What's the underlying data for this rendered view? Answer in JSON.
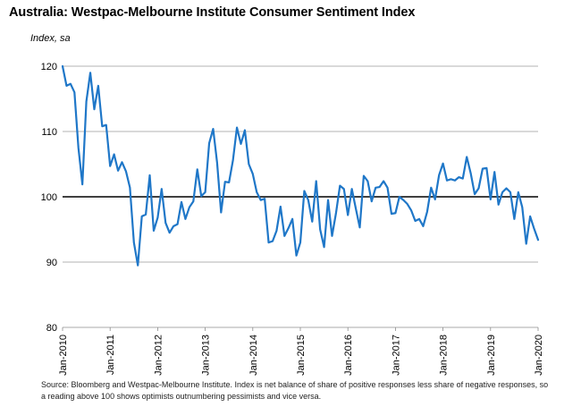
{
  "chart_data": {
    "type": "line",
    "title": "Australia: Westpac-Melbourne Institute Consumer Sentiment Index",
    "ylabel": "Index, sa",
    "xlabel": "",
    "ylim": [
      80,
      120
    ],
    "yticks": [
      80,
      90,
      100,
      110,
      120
    ],
    "xlim": [
      2010.0,
      2020.0
    ],
    "xticks": [
      {
        "label": "Jan-2010",
        "x": 2010
      },
      {
        "label": "Jan-2011",
        "x": 2011
      },
      {
        "label": "Jan-2012",
        "x": 2012
      },
      {
        "label": "Jan-2013",
        "x": 2013
      },
      {
        "label": "Jan-2014",
        "x": 2014
      },
      {
        "label": "Jan-2015",
        "x": 2015
      },
      {
        "label": "Jan-2016",
        "x": 2016
      },
      {
        "label": "Jan-2017",
        "x": 2017
      },
      {
        "label": "Jan-2018",
        "x": 2018
      },
      {
        "label": "Jan-2019",
        "x": 2019
      },
      {
        "label": "Jan-2020",
        "x": 2020
      }
    ],
    "reference_line": 100,
    "grid": true,
    "series": [
      {
        "name": "Consumer Sentiment Index",
        "color": "#1F77C8",
        "start": "2010-01",
        "values": [
          120.5,
          117.0,
          117.3,
          116.0,
          107.5,
          101.9,
          114.6,
          119.0,
          113.4,
          117.0,
          110.8,
          111.0,
          104.7,
          106.5,
          104.0,
          105.3,
          103.9,
          101.4,
          93.0,
          89.5,
          97.0,
          97.3,
          103.3,
          94.8,
          96.8,
          101.2,
          96.0,
          94.5,
          95.5,
          95.8,
          99.2,
          96.6,
          98.4,
          99.3,
          104.2,
          100.1,
          100.7,
          108.2,
          110.4,
          105.2,
          97.6,
          102.3,
          102.2,
          105.6,
          110.6,
          108.1,
          110.2,
          105.0,
          103.5,
          100.7,
          99.5,
          99.7,
          93.0,
          93.2,
          94.8,
          98.5,
          94.0,
          95.2,
          96.6,
          91.0,
          93.0,
          100.9,
          99.5,
          96.2,
          102.4,
          95.0,
          92.3,
          99.5,
          94.0,
          97.5,
          101.7,
          101.2,
          97.2,
          101.2,
          98.2,
          95.3,
          103.2,
          102.4,
          99.3,
          101.4,
          101.5,
          102.4,
          101.4,
          97.4,
          97.5,
          100.0,
          99.5,
          98.9,
          97.9,
          96.3,
          96.6,
          95.5,
          97.7,
          101.4,
          99.6,
          103.3,
          105.1,
          102.5,
          102.7,
          102.5,
          103.0,
          102.8,
          106.1,
          103.6,
          100.4,
          101.3,
          104.3,
          104.4,
          99.6,
          103.8,
          98.8,
          100.7,
          101.3,
          100.7,
          96.6,
          100.7,
          98.4,
          92.8,
          97.0,
          95.1,
          93.4
        ]
      }
    ]
  },
  "source_note": "Source: Bloomberg and Westpac-Melbourne Institute.  Index is net balance of share of positive responses less share of negative responses, so a reading above 100 shows optimists outnumbering pessimists and vice versa."
}
